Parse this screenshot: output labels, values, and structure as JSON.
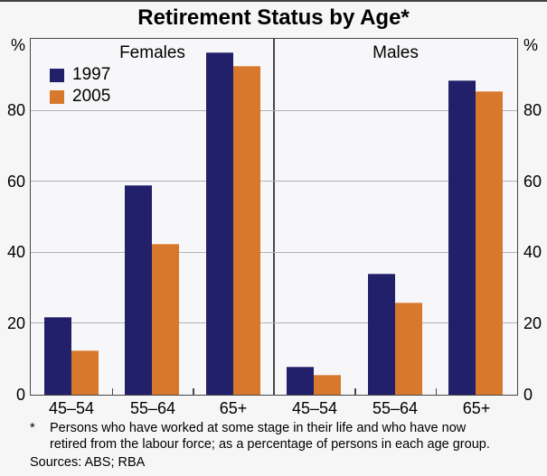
{
  "title": "Retirement Status by Age*",
  "axis": {
    "unit": "%",
    "yticks": [
      0,
      20,
      40,
      60,
      80
    ],
    "ymax": 100
  },
  "colors": {
    "series_1997": "#221f6b",
    "series_2005": "#d8782c",
    "gridline": "#b2b2b5",
    "frame": "#474747",
    "background": "#f6f6f7"
  },
  "chart_data": {
    "type": "bar",
    "title": "Retirement Status by Age*",
    "categories": [
      "45–54",
      "55–64",
      "65+"
    ],
    "panels": [
      {
        "label": "Females",
        "series": [
          {
            "name": "1997",
            "values": [
              22,
              59,
              96.5
            ]
          },
          {
            "name": "2005",
            "values": [
              12.5,
              42.5,
              92.5
            ]
          }
        ]
      },
      {
        "label": "Males",
        "series": [
          {
            "name": "1997",
            "values": [
              8,
              34,
              88.5
            ]
          },
          {
            "name": "2005",
            "values": [
              5.5,
              26,
              85.5
            ]
          }
        ]
      }
    ],
    "ylabel": "%",
    "xlabel": "",
    "ylim": [
      0,
      100
    ],
    "yticks": [
      0,
      20,
      40,
      60,
      80
    ],
    "grid": true,
    "legend_position": "top-left of Females panel"
  },
  "footnote": {
    "marker": "*",
    "lines": [
      "Persons who have worked at some stage in their life and who have now",
      "retired from the labour force; as a percentage of persons in each age group."
    ],
    "sources": "Sources: ABS; RBA"
  }
}
